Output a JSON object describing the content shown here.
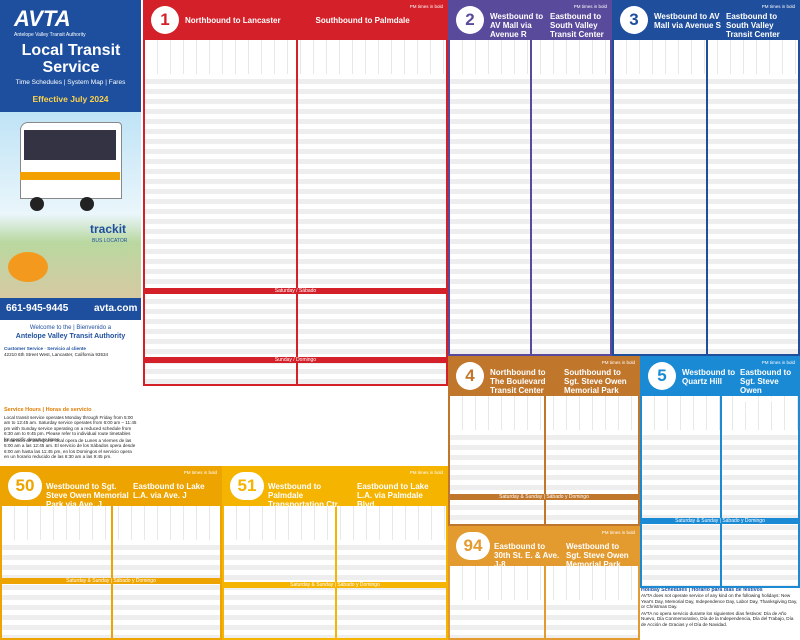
{
  "left": {
    "logo": "AVTA",
    "agency": "Antelope Valley Transit Authority",
    "title": "Local Transit Service",
    "links": "Time Schedules | System Map | Fares",
    "effective": "Effective July 2024",
    "trackit": "trackit",
    "locator": "BUS LOCATOR",
    "phone": "661-945-9445",
    "web": "avta.com",
    "welcome": "Welcome to the | Bienvenido a",
    "welcome_agency": "Antelope Valley Transit Authority",
    "customer": "Customer Service · Servicio al cliente",
    "address": "42210 6th Street West, Lancaster, California 93534",
    "hours_title": "Service Hours | Horas de servicio",
    "hours_text": "Local transit service operates Monday through Friday from 5:00 am to 12:45 am. Saturday service operates from 6:00 am – 11:45 pm with Sunday service operating on a reduced schedule from 6:30 am to 9:45 pm. Please refer to individual route timetables for specific departure times.",
    "hours_text_es": "El servicio de transporte local opera de Lunes a Viernes de las 5:00 am a las 12:45 am. El servicio de los Sábados opera desde 6:00 am hasta las 11:45 pm, en los Domingos el servicio opera en un horario reducido de las 6:30 am a las 9:45 pm."
  },
  "routes": [
    {
      "number": "1",
      "color": "#d42029",
      "note": "PM times in bold",
      "directions": [
        "Northbound to Lancaster",
        "Southbound to Palmdale"
      ],
      "sections": [
        "Saturday / Sábado",
        "Sunday / Domingo"
      ]
    },
    {
      "number": "2",
      "color": "#5a4a9c",
      "note": "PM times in bold",
      "directions": [
        "Westbound to AV Mall via Avenue R",
        "Eastbound to South Valley Transit Center"
      ],
      "sections": []
    },
    {
      "number": "3",
      "color": "#1f4e9c",
      "note": "PM times in bold",
      "directions": [
        "Westbound to AV Mall via Avenue S",
        "Eastbound to South Valley Transit Center"
      ],
      "sections": []
    },
    {
      "number": "4",
      "color": "#c0762b",
      "note": "PM times in bold",
      "directions": [
        "Northbound to The Boulevard Transit Center",
        "Southbound to Sgt. Steve Owen Memorial Park"
      ],
      "sections": [
        "Saturday & Sunday | Sábado y Domingo"
      ]
    },
    {
      "number": "5",
      "color": "#1a8ad4",
      "note": "PM times in bold",
      "directions": [
        "Westbound to Quartz Hill",
        "Eastbound to Sgt. Steve Owen Memorial Park"
      ],
      "sections": [
        "Saturday & Sunday | Sábado y Domingo"
      ]
    },
    {
      "number": "50",
      "color": "#eea400",
      "note": "PM times in bold",
      "directions": [
        "Westbound to Sgt. Steve Owen Memorial Park via Ave. J",
        "Eastbound to Lake L.A. via Ave. J"
      ],
      "sections": [
        "Saturday & Sunday | Sábado y Domingo"
      ]
    },
    {
      "number": "51",
      "color": "#f4b400",
      "note": "PM times in bold",
      "directions": [
        "Westbound to Palmdale Transportation Ctr.",
        "Eastbound to Lake L.A. via Palmdale Blvd."
      ],
      "sections": [
        "Saturday & Sunday | Sábado y Domingo"
      ]
    },
    {
      "number": "94",
      "color": "#e39a2e",
      "note": "PM times in bold",
      "directions": [
        "Eastbound to 30th St. E. & Ave. J-8",
        "Westbound to Sgt. Steve Owen Memorial Park"
      ],
      "sections": []
    }
  ],
  "holiday": {
    "title": "Holiday Schedules | Horario para días de festivos",
    "text": "AVTA does not operate service of any kind on the following holidays: New Year's Day, Memorial Day, Independence Day, Labor Day, Thanksgiving Day, or Christmas Day.",
    "text_es": "AVTA no opera servicio durante los siguientes días festivos: Día de Año Nuevo, Día Conmemorativo, Día de la Independencia, Día del Trabajo, Día de Acción de Gracias y el Día de Navidad."
  }
}
